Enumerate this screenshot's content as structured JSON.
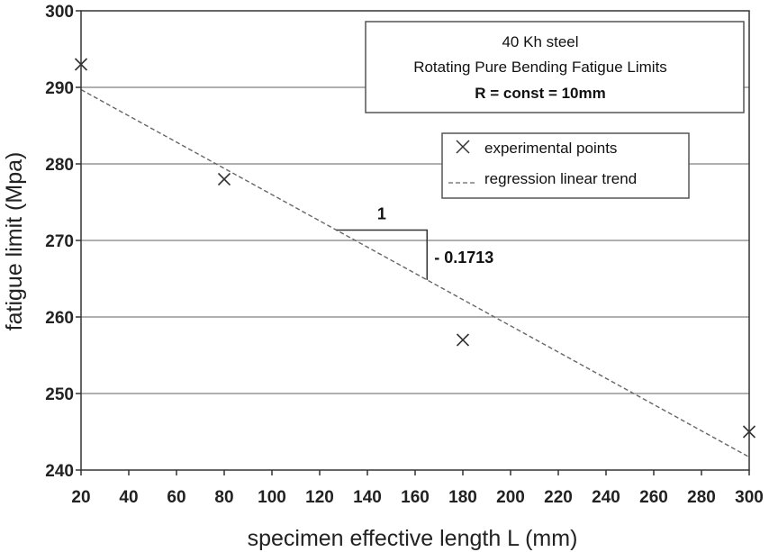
{
  "chart_data": {
    "type": "scatter",
    "title_lines": [
      "40 Kh steel",
      "Rotating Pure Bending Fatigue Limits",
      "R = const = 10mm"
    ],
    "xlabel": "specimen effective length L (mm)",
    "ylabel": "fatigue limit (Mpa)",
    "xlim": [
      20,
      300
    ],
    "ylim": [
      240,
      300
    ],
    "x_ticks": [
      20,
      40,
      60,
      80,
      100,
      120,
      140,
      160,
      180,
      200,
      220,
      240,
      260,
      280,
      300
    ],
    "y_ticks": [
      240,
      250,
      260,
      270,
      280,
      290,
      300
    ],
    "grid": "horizontal",
    "series": [
      {
        "name": "experimental points",
        "marker": "x",
        "x": [
          20,
          80,
          180,
          300
        ],
        "y": [
          293,
          278,
          257,
          245
        ]
      },
      {
        "name": "regression linear trend",
        "style": "dashed-line",
        "x": [
          20,
          300
        ],
        "y": [
          289.7,
          241.7
        ]
      }
    ],
    "slope_annotation": {
      "run_label": "1",
      "rise_label": "- 0.1713"
    },
    "legend_position": "upper-right",
    "colors": {
      "line": "#666666",
      "grid": "#808080",
      "marker": "#333333"
    }
  }
}
